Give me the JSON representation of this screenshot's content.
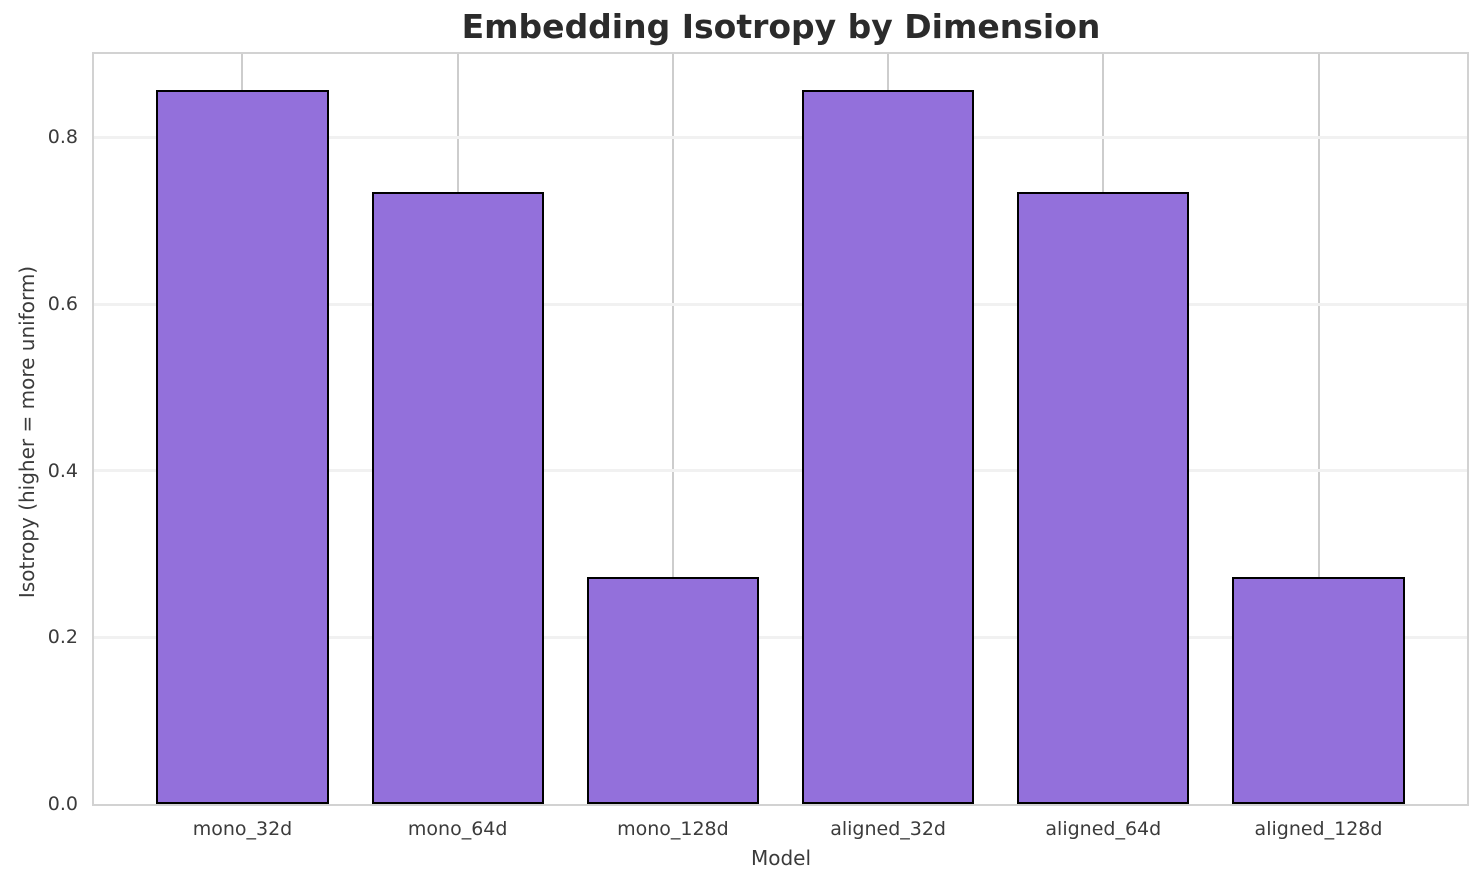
{
  "chart_data": {
    "type": "bar",
    "title": "Embedding Isotropy by Dimension",
    "xlabel": "Model",
    "ylabel": "Isotropy (higher = more uniform)",
    "categories": [
      "mono_32d",
      "mono_64d",
      "mono_128d",
      "aligned_32d",
      "aligned_64d",
      "aligned_128d"
    ],
    "values": [
      0.857,
      0.735,
      0.272,
      0.857,
      0.735,
      0.272
    ],
    "yticks": [
      0.0,
      0.2,
      0.4,
      0.6,
      0.8
    ],
    "ytick_labels": [
      "0.0",
      "0.2",
      "0.4",
      "0.6",
      "0.8"
    ],
    "ylim": [
      0,
      0.9
    ],
    "xlim_units": [
      -0.69,
      5.69
    ],
    "bar_width_units": 0.8,
    "grid": true,
    "legend": "none",
    "colors": {
      "bar_fill": "#9370DB",
      "bar_edge": "#000000",
      "h_grid": "#f1f1f1",
      "v_grid": "#cdcdcd",
      "spine": "#d2d2d2",
      "title_text": "#2b2b2b",
      "label_text": "#3b3b3b",
      "background": "#ffffff"
    }
  }
}
